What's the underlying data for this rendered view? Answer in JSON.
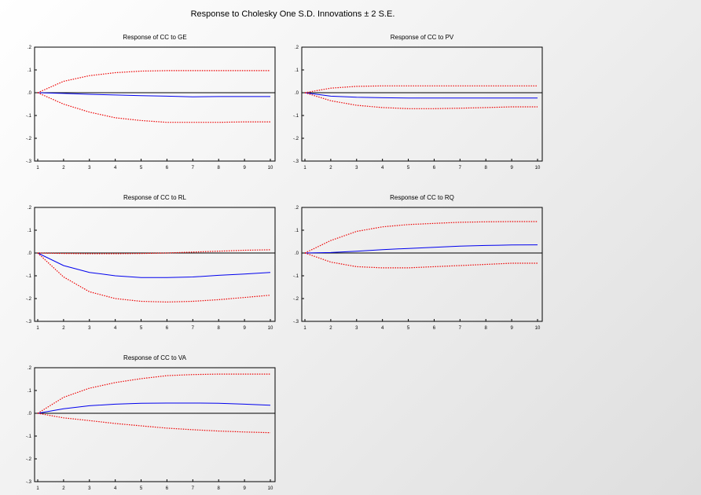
{
  "title": "Response to Cholesky One S.D. Innovations ± 2 S.E.",
  "colors": {
    "response": "#0000ee",
    "band": "#ee0000",
    "zero": "#000000"
  },
  "chart_data": [
    {
      "type": "line",
      "title": "Response of CC to GE",
      "x": [
        1,
        2,
        3,
        4,
        5,
        6,
        7,
        8,
        9,
        10
      ],
      "ylim": [
        -0.3,
        0.2
      ],
      "yticks": [
        ".2",
        ".1",
        ".0",
        "-.1",
        "-.2",
        "-.3"
      ],
      "xticks": [
        "1",
        "2",
        "3",
        "4",
        "5",
        "6",
        "7",
        "8",
        "9",
        "10"
      ],
      "series": [
        {
          "role": "response",
          "values": [
            0.0,
            -0.003,
            -0.007,
            -0.01,
            -0.013,
            -0.015,
            -0.018,
            -0.017,
            -0.017,
            -0.017
          ]
        },
        {
          "role": "upper",
          "values": [
            0.0,
            0.05,
            0.075,
            0.088,
            0.095,
            0.097,
            0.097,
            0.097,
            0.097,
            0.097
          ]
        },
        {
          "role": "lower",
          "values": [
            0.0,
            -0.05,
            -0.085,
            -0.11,
            -0.122,
            -0.13,
            -0.13,
            -0.13,
            -0.128,
            -0.128
          ]
        }
      ]
    },
    {
      "type": "line",
      "title": "Response of CC to PV",
      "x": [
        1,
        2,
        3,
        4,
        5,
        6,
        7,
        8,
        9,
        10
      ],
      "ylim": [
        -0.3,
        0.2
      ],
      "yticks": [
        ".2",
        ".1",
        ".0",
        "-.1",
        "-.2",
        "-.3"
      ],
      "xticks": [
        "1",
        "2",
        "3",
        "4",
        "5",
        "6",
        "7",
        "8",
        "9",
        "10"
      ],
      "series": [
        {
          "role": "response",
          "values": [
            0.0,
            -0.015,
            -0.02,
            -0.022,
            -0.023,
            -0.023,
            -0.023,
            -0.023,
            -0.023,
            -0.023
          ]
        },
        {
          "role": "upper",
          "values": [
            0.0,
            0.02,
            0.028,
            0.03,
            0.03,
            0.03,
            0.03,
            0.03,
            0.03,
            0.03
          ]
        },
        {
          "role": "lower",
          "values": [
            0.0,
            -0.035,
            -0.055,
            -0.065,
            -0.07,
            -0.07,
            -0.068,
            -0.065,
            -0.062,
            -0.062
          ]
        }
      ]
    },
    {
      "type": "line",
      "title": "Response of CC to RL",
      "x": [
        1,
        2,
        3,
        4,
        5,
        6,
        7,
        8,
        9,
        10
      ],
      "ylim": [
        -0.3,
        0.2
      ],
      "yticks": [
        ".2",
        ".1",
        ".0",
        "-.1",
        "-.2",
        "-.3"
      ],
      "xticks": [
        "1",
        "2",
        "3",
        "4",
        "5",
        "6",
        "7",
        "8",
        "9",
        "10"
      ],
      "series": [
        {
          "role": "response",
          "values": [
            0.0,
            -0.055,
            -0.085,
            -0.1,
            -0.108,
            -0.108,
            -0.105,
            -0.098,
            -0.092,
            -0.085
          ]
        },
        {
          "role": "upper",
          "values": [
            0.0,
            -0.002,
            -0.003,
            -0.003,
            -0.002,
            0.0,
            0.004,
            0.008,
            0.012,
            0.014
          ]
        },
        {
          "role": "lower",
          "values": [
            0.0,
            -0.105,
            -0.17,
            -0.2,
            -0.212,
            -0.215,
            -0.212,
            -0.205,
            -0.195,
            -0.185
          ]
        }
      ]
    },
    {
      "type": "line",
      "title": "Response of CC to RQ",
      "x": [
        1,
        2,
        3,
        4,
        5,
        6,
        7,
        8,
        9,
        10
      ],
      "ylim": [
        -0.3,
        0.2
      ],
      "yticks": [
        ".2",
        ".1",
        ".0",
        "-.1",
        "-.2",
        "-.3"
      ],
      "xticks": [
        "1",
        "2",
        "3",
        "4",
        "5",
        "6",
        "7",
        "8",
        "9",
        "10"
      ],
      "series": [
        {
          "role": "response",
          "values": [
            0.0,
            0.002,
            0.008,
            0.015,
            0.02,
            0.025,
            0.03,
            0.033,
            0.035,
            0.036
          ]
        },
        {
          "role": "upper",
          "values": [
            0.0,
            0.055,
            0.095,
            0.115,
            0.125,
            0.13,
            0.135,
            0.137,
            0.138,
            0.138
          ]
        },
        {
          "role": "lower",
          "values": [
            0.0,
            -0.04,
            -0.06,
            -0.065,
            -0.065,
            -0.06,
            -0.055,
            -0.05,
            -0.045,
            -0.045
          ]
        }
      ]
    },
    {
      "type": "line",
      "title": "Response of CC to VA",
      "x": [
        1,
        2,
        3,
        4,
        5,
        6,
        7,
        8,
        9,
        10
      ],
      "ylim": [
        -0.3,
        0.2
      ],
      "yticks": [
        ".2",
        ".1",
        ".0",
        "-.1",
        "-.2",
        "-.3"
      ],
      "xticks": [
        "1",
        "2",
        "3",
        "4",
        "5",
        "6",
        "7",
        "8",
        "9",
        "10"
      ],
      "series": [
        {
          "role": "response",
          "values": [
            0.0,
            0.02,
            0.033,
            0.04,
            0.044,
            0.045,
            0.045,
            0.044,
            0.04,
            0.035
          ]
        },
        {
          "role": "upper",
          "values": [
            0.0,
            0.07,
            0.11,
            0.135,
            0.152,
            0.165,
            0.17,
            0.172,
            0.172,
            0.172
          ]
        },
        {
          "role": "lower",
          "values": [
            0.0,
            -0.02,
            -0.032,
            -0.045,
            -0.055,
            -0.065,
            -0.072,
            -0.078,
            -0.082,
            -0.085
          ]
        }
      ]
    }
  ]
}
